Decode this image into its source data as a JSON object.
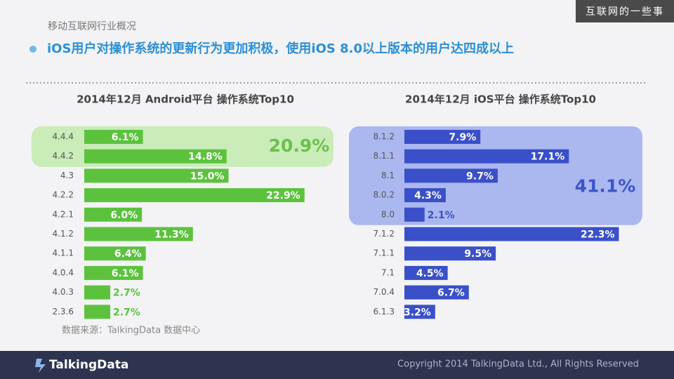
{
  "header": "移动互联网行业概况",
  "headline": "iOS用户对操作系统的更新行为更加积极，使用iOS 8.0以上版本的用户达四成以上",
  "watermark": "互联网的一些事",
  "source": "数据来源：TalkingData 数据中心",
  "footer": {
    "logo": "TalkingData",
    "copyright": "Copyright 2014 TalkingData Ltd., All Rights Reserved"
  },
  "chart_data": [
    {
      "type": "bar",
      "orientation": "horizontal",
      "title": "2014年12月 Android平台 操作系统Top10",
      "categories": [
        "4.4.4",
        "4.4.2",
        "4.3",
        "4.2.2",
        "4.2.1",
        "4.1.2",
        "4.1.1",
        "4.0.4",
        "4.0.3",
        "2.3.6"
      ],
      "values": [
        6.1,
        14.8,
        15.0,
        22.9,
        6.0,
        11.3,
        6.4,
        6.1,
        2.7,
        2.7
      ],
      "value_labels": [
        "6.1%",
        "14.8%",
        "15.0%",
        "22.9%",
        "6.0%",
        "11.3%",
        "6.4%",
        "6.1%",
        "2.7%",
        "2.7%"
      ],
      "color": "#5cc23d",
      "highlight": {
        "value": 20.9,
        "label": "20.9%",
        "start": "4.4.4",
        "end": "4.4.2",
        "color": "#c9ecb9",
        "text_color": "#6cc04a"
      }
    },
    {
      "type": "bar",
      "orientation": "horizontal",
      "title": "2014年12月 iOS平台 操作系统Top10",
      "categories": [
        "8.1.2",
        "8.1.1",
        "8.1",
        "8.0.2",
        "8.0",
        "7.1.2",
        "7.1.1",
        "7.1",
        "7.0.4",
        "6.1.3"
      ],
      "values": [
        7.9,
        17.1,
        9.7,
        4.3,
        2.1,
        22.3,
        9.5,
        4.5,
        6.7,
        3.2
      ],
      "value_labels": [
        "7.9%",
        "17.1%",
        "9.7%",
        "4.3%",
        "2.1%",
        "22.3%",
        "9.5%",
        "4.5%",
        "6.7%",
        "3.2%"
      ],
      "color": "#3a50c9",
      "highlight": {
        "value": 41.1,
        "label": "41.1%",
        "start": "8.1.2",
        "end": "8.0",
        "color": "#abb7ef",
        "text_color": "#3d55c9"
      }
    }
  ]
}
